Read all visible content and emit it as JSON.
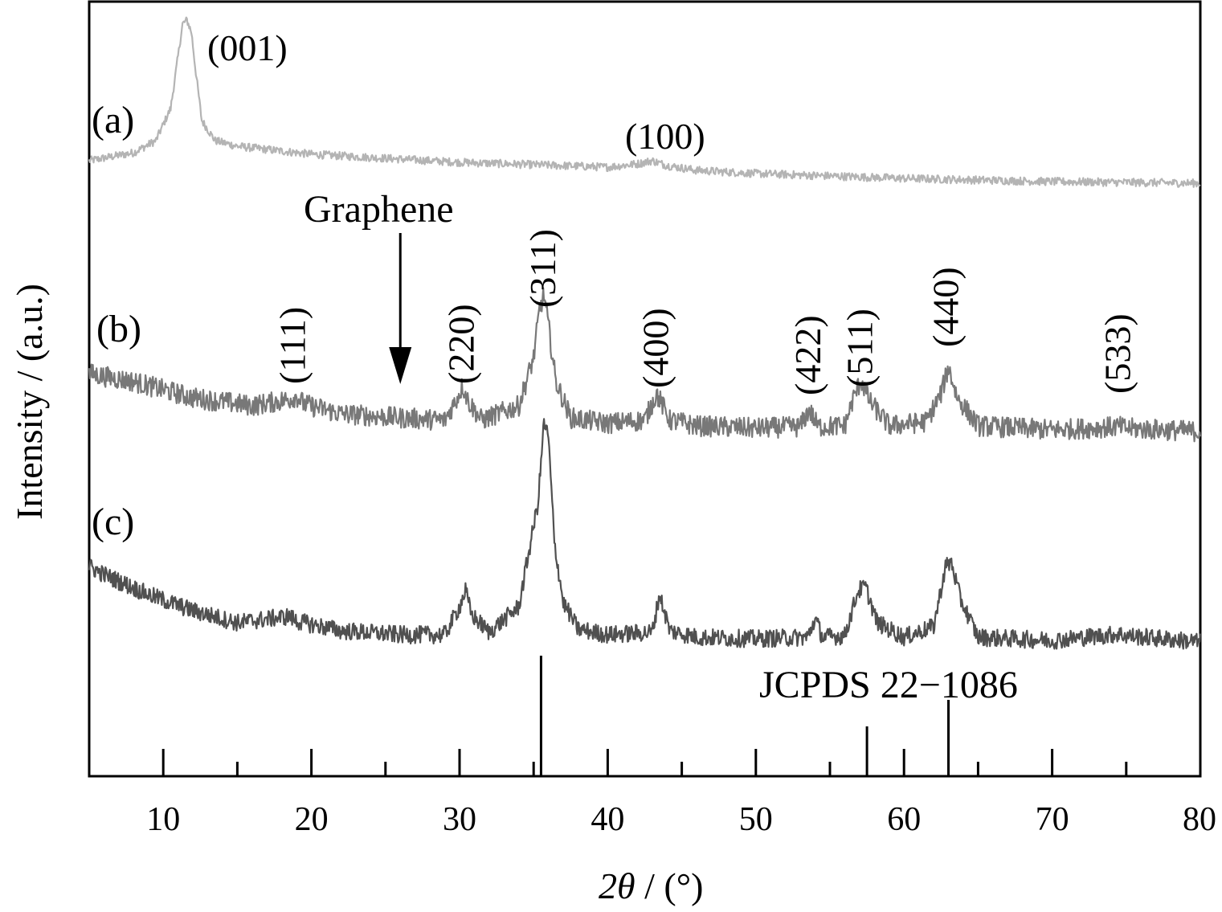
{
  "chart_data": {
    "type": "line",
    "xlabel": "2θ / (°)",
    "xlabel_parts": {
      "var": "2θ",
      "unit": " / (°)"
    },
    "ylabel": "Intensity / (a.u.)",
    "xlim": [
      5,
      80
    ],
    "x_ticks": [
      10,
      20,
      30,
      40,
      50,
      60,
      70,
      80
    ],
    "x_minor_ticks": [
      15,
      25,
      35,
      45,
      55,
      65,
      75
    ],
    "y_ticks_shown": false,
    "grid": false,
    "legend": "none",
    "y_units": "arbitrary",
    "series": [
      {
        "name": "(a)",
        "color": "#b4b4b4",
        "offset": 230,
        "x": [
          5,
          8,
          9.5,
          10.5,
          11.0,
          11.3,
          11.6,
          11.9,
          12.2,
          12.6,
          13.5,
          15,
          20,
          30,
          40,
          42,
          43,
          44,
          46,
          50,
          60,
          70,
          80
        ],
        "y": [
          30,
          40,
          55,
          95,
          160,
          200,
          205,
          190,
          140,
          80,
          55,
          48,
          38,
          28,
          22,
          26,
          30,
          24,
          18,
          14,
          8,
          4,
          2
        ],
        "peaks": [
          {
            "x": 11.6,
            "label": "(001)"
          },
          {
            "x": 43.0,
            "label": "(100)"
          }
        ]
      },
      {
        "name": "(b)",
        "color": "#787878",
        "offset": 545,
        "x": [
          5,
          8,
          12,
          16,
          18.5,
          19,
          19.5,
          22,
          26,
          29,
          29.8,
          30.2,
          30.6,
          31.5,
          34,
          35.0,
          35.4,
          35.7,
          36.0,
          36.5,
          37.5,
          40,
          42.5,
          43.3,
          44.2,
          46,
          50,
          53.0,
          53.6,
          54.2,
          56,
          56.6,
          57.1,
          57.7,
          59,
          61.5,
          62.5,
          63.0,
          63.6,
          65,
          70,
          74.5,
          75,
          80
        ],
        "y": [
          80,
          70,
          50,
          40,
          48,
          52,
          42,
          30,
          25,
          22,
          48,
          65,
          45,
          22,
          40,
          100,
          160,
          178,
          140,
          70,
          25,
          18,
          22,
          55,
          22,
          15,
          12,
          14,
          35,
          14,
          15,
          50,
          72,
          45,
          15,
          20,
          55,
          88,
          50,
          15,
          10,
          14,
          12,
          8
        ],
        "peaks": [
          {
            "x": 18.8,
            "label": "(111)"
          },
          {
            "x": 30.2,
            "label": "(220)"
          },
          {
            "x": 35.7,
            "label": "(311)"
          },
          {
            "x": 43.3,
            "label": "(400)"
          },
          {
            "x": 53.6,
            "label": "(422)"
          },
          {
            "x": 57.1,
            "label": "(511)"
          },
          {
            "x": 62.9,
            "label": "(440)"
          },
          {
            "x": 74.5,
            "label": "(533)"
          }
        ]
      },
      {
        "name": "(c)",
        "color": "#505050",
        "offset": 805,
        "x": [
          5,
          6,
          9,
          12,
          15,
          18.5,
          19,
          22,
          26,
          29,
          30.0,
          30.4,
          30.8,
          32,
          34,
          35.3,
          35.7,
          36.0,
          36.4,
          37,
          38,
          40,
          43,
          43.5,
          44.2,
          46,
          50,
          53.5,
          54.0,
          54.5,
          56,
          56.9,
          57.4,
          58.2,
          60,
          62,
          62.8,
          63.2,
          63.8,
          65,
          70,
          74.5,
          75,
          80
        ],
        "y": [
          100,
          90,
          65,
          45,
          30,
          38,
          32,
          20,
          15,
          15,
          50,
          70,
          40,
          18,
          50,
          180,
          280,
          260,
          130,
          55,
          22,
          15,
          18,
          65,
          20,
          12,
          10,
          12,
          35,
          12,
          14,
          70,
          75,
          30,
          12,
          25,
          100,
          105,
          60,
          12,
          8,
          16,
          14,
          6
        ]
      }
    ],
    "annotations": [
      {
        "text": "Graphene",
        "arrow_x": 26.0
      },
      {
        "text": "JCPDS 22−1086"
      }
    ],
    "reference_lines": [
      {
        "x": 35.5,
        "height": 150
      },
      {
        "x": 57.5,
        "height": 62
      },
      {
        "x": 63.0,
        "height": 95
      }
    ]
  }
}
